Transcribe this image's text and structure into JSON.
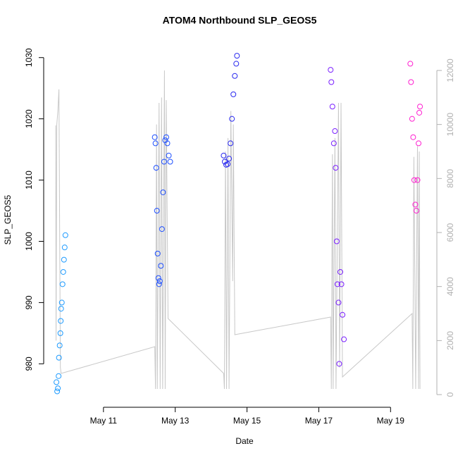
{
  "chart_data": {
    "type": "scatter",
    "title": "ATOM4 Northbound SLP_GEOS5",
    "x_label": "Date",
    "y_label": "SLP_GEOS5",
    "xlim": [
      9.59,
      20.29
    ],
    "xticks": [
      {
        "value": 11,
        "label": "May 11"
      },
      {
        "value": 13,
        "label": "May 13"
      },
      {
        "value": 15,
        "label": "May 15"
      },
      {
        "value": 17,
        "label": "May 17"
      },
      {
        "value": 19,
        "label": "May 19"
      }
    ],
    "ylim": [
      974.4,
      1032.5
    ],
    "yticks": [
      980,
      990,
      1000,
      1010,
      1020,
      1030
    ],
    "y2lim": [
      -130,
      13043
    ],
    "y2ticks": [
      0,
      2000,
      4000,
      6000,
      8000,
      10000,
      12000
    ],
    "y2_color": "#b0b0b0",
    "series": [
      {
        "color": "#1e9bff",
        "x": [
          9.69,
          9.71,
          9.73,
          9.75,
          9.76,
          9.78,
          9.8,
          9.81,
          9.82,
          9.84,
          9.86,
          9.88,
          9.9,
          9.92,
          9.94
        ],
        "values": [
          977,
          975.5,
          976,
          978,
          981,
          983,
          985,
          987,
          989,
          990,
          993,
          995,
          997,
          999,
          1001
        ]
      },
      {
        "color": "#1f50ff",
        "x": [
          12.43,
          12.45,
          12.47,
          12.49,
          12.51,
          12.53,
          12.55,
          12.57,
          12.6,
          12.63,
          12.66,
          12.69,
          12.72,
          12.75,
          12.78,
          12.82,
          12.86
        ],
        "values": [
          1017,
          1016,
          1012,
          1005,
          998,
          994,
          993,
          993.5,
          996,
          1002,
          1008,
          1013,
          1016.5,
          1017,
          1016,
          1014,
          1013
        ]
      },
      {
        "color": "#2a2af0",
        "x": [
          14.35,
          14.38,
          14.42,
          14.46,
          14.5,
          14.54,
          14.58,
          14.62,
          14.66,
          14.7,
          14.72
        ],
        "values": [
          1014,
          1013,
          1012.5,
          1012.6,
          1013.5,
          1016,
          1020,
          1024,
          1027,
          1029,
          1030.3
        ]
      },
      {
        "color": "#7a1fff",
        "x": [
          17.33,
          17.35,
          17.38,
          17.42,
          17.45,
          17.47,
          17.5,
          17.52,
          17.55,
          17.57,
          17.6,
          17.63,
          17.66,
          17.7
        ],
        "values": [
          1028,
          1026,
          1022,
          1016,
          1018,
          1012,
          1000,
          993,
          990,
          980,
          995,
          993,
          988,
          984
        ]
      },
      {
        "color": "#ff1fd0",
        "x": [
          19.55,
          19.57,
          19.6,
          19.63,
          19.66,
          19.69,
          19.72,
          19.75,
          19.78,
          19.8,
          19.82
        ],
        "values": [
          1029,
          1026,
          1020,
          1017,
          1010,
          1006,
          1005,
          1010,
          1016,
          1021,
          1022
        ]
      },
      {
        "type": "line",
        "axis": "y2",
        "color": "#c8c8c8",
        "x": [
          9.67,
          9.68,
          9.7,
          9.73,
          9.76,
          9.78,
          9.8,
          9.82,
          12.43,
          12.45,
          12.48,
          12.5,
          12.55,
          12.58,
          12.62,
          12.65,
          12.7,
          12.72,
          12.75,
          12.8,
          14.35,
          14.37,
          14.4,
          14.43,
          14.47,
          14.5,
          14.55,
          14.6,
          14.62,
          14.66,
          17.33,
          17.35,
          17.38,
          17.4,
          17.45,
          17.48,
          17.55,
          17.58,
          17.62,
          17.66,
          19.6,
          19.62,
          19.65,
          19.7,
          19.75,
          19.78,
          19.8,
          19.82
        ],
        "values": [
          9966,
          2000,
          10000,
          10500,
          11300,
          6000,
          1000,
          783,
          1774,
          209,
          10000,
          209,
          10800,
          209,
          11000,
          209,
          12000,
          209,
          10900,
          2818,
          783,
          209,
          9000,
          209,
          9500,
          209,
          10500,
          4200,
          10000,
          2218,
          2870,
          209,
          8900,
          209,
          9500,
          209,
          10800,
          1000,
          10800,
          652,
          3000,
          209,
          8800,
          209,
          9200,
          209,
          9000,
          209
        ]
      }
    ]
  }
}
